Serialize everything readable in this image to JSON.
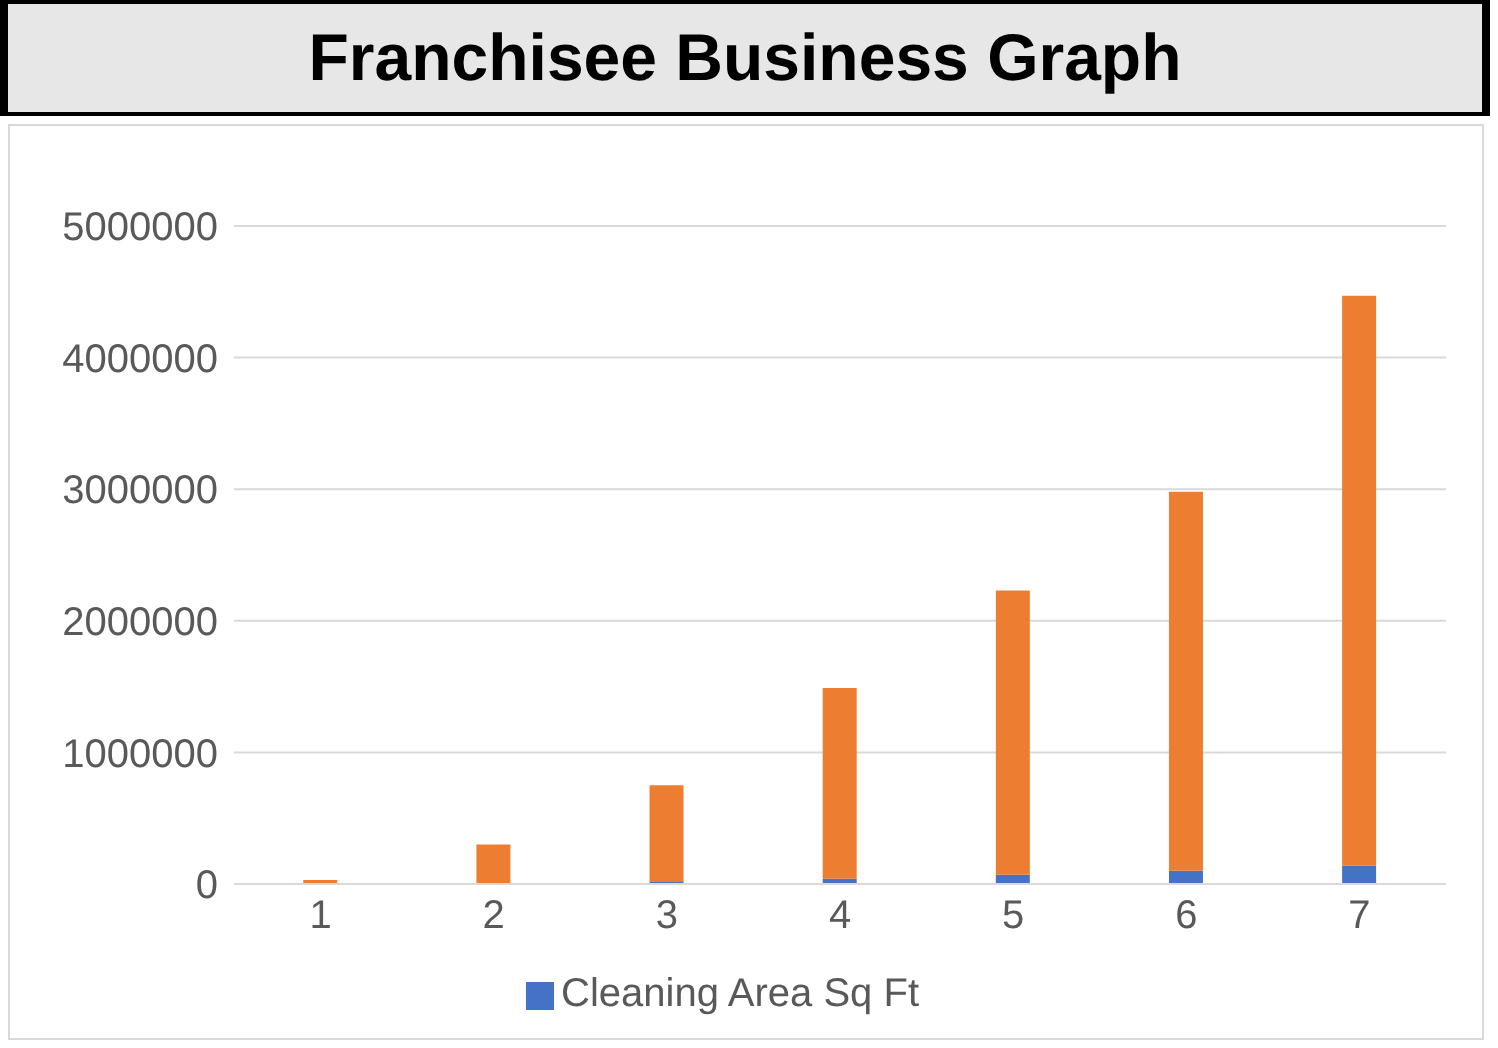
{
  "chart_data": {
    "type": "bar",
    "title": "Franchisee Business Graph",
    "categories": [
      "1",
      "2",
      "3",
      "4",
      "5",
      "6",
      "7"
    ],
    "stacked": true,
    "series": [
      {
        "name": "Cleaning Area Sq Ft",
        "color": "#4472c4",
        "values": [
          0,
          0,
          20000,
          40000,
          70000,
          100000,
          140000
        ]
      },
      {
        "color": "#ed7d31",
        "values": [
          30000,
          300000,
          730000,
          1450000,
          2160000,
          2880000,
          4330000
        ]
      }
    ],
    "ylim": [
      0,
      5000000
    ],
    "yticks": [
      0,
      1000000,
      2000000,
      3000000,
      4000000,
      5000000
    ],
    "grid": "y",
    "legend": "bottom"
  }
}
